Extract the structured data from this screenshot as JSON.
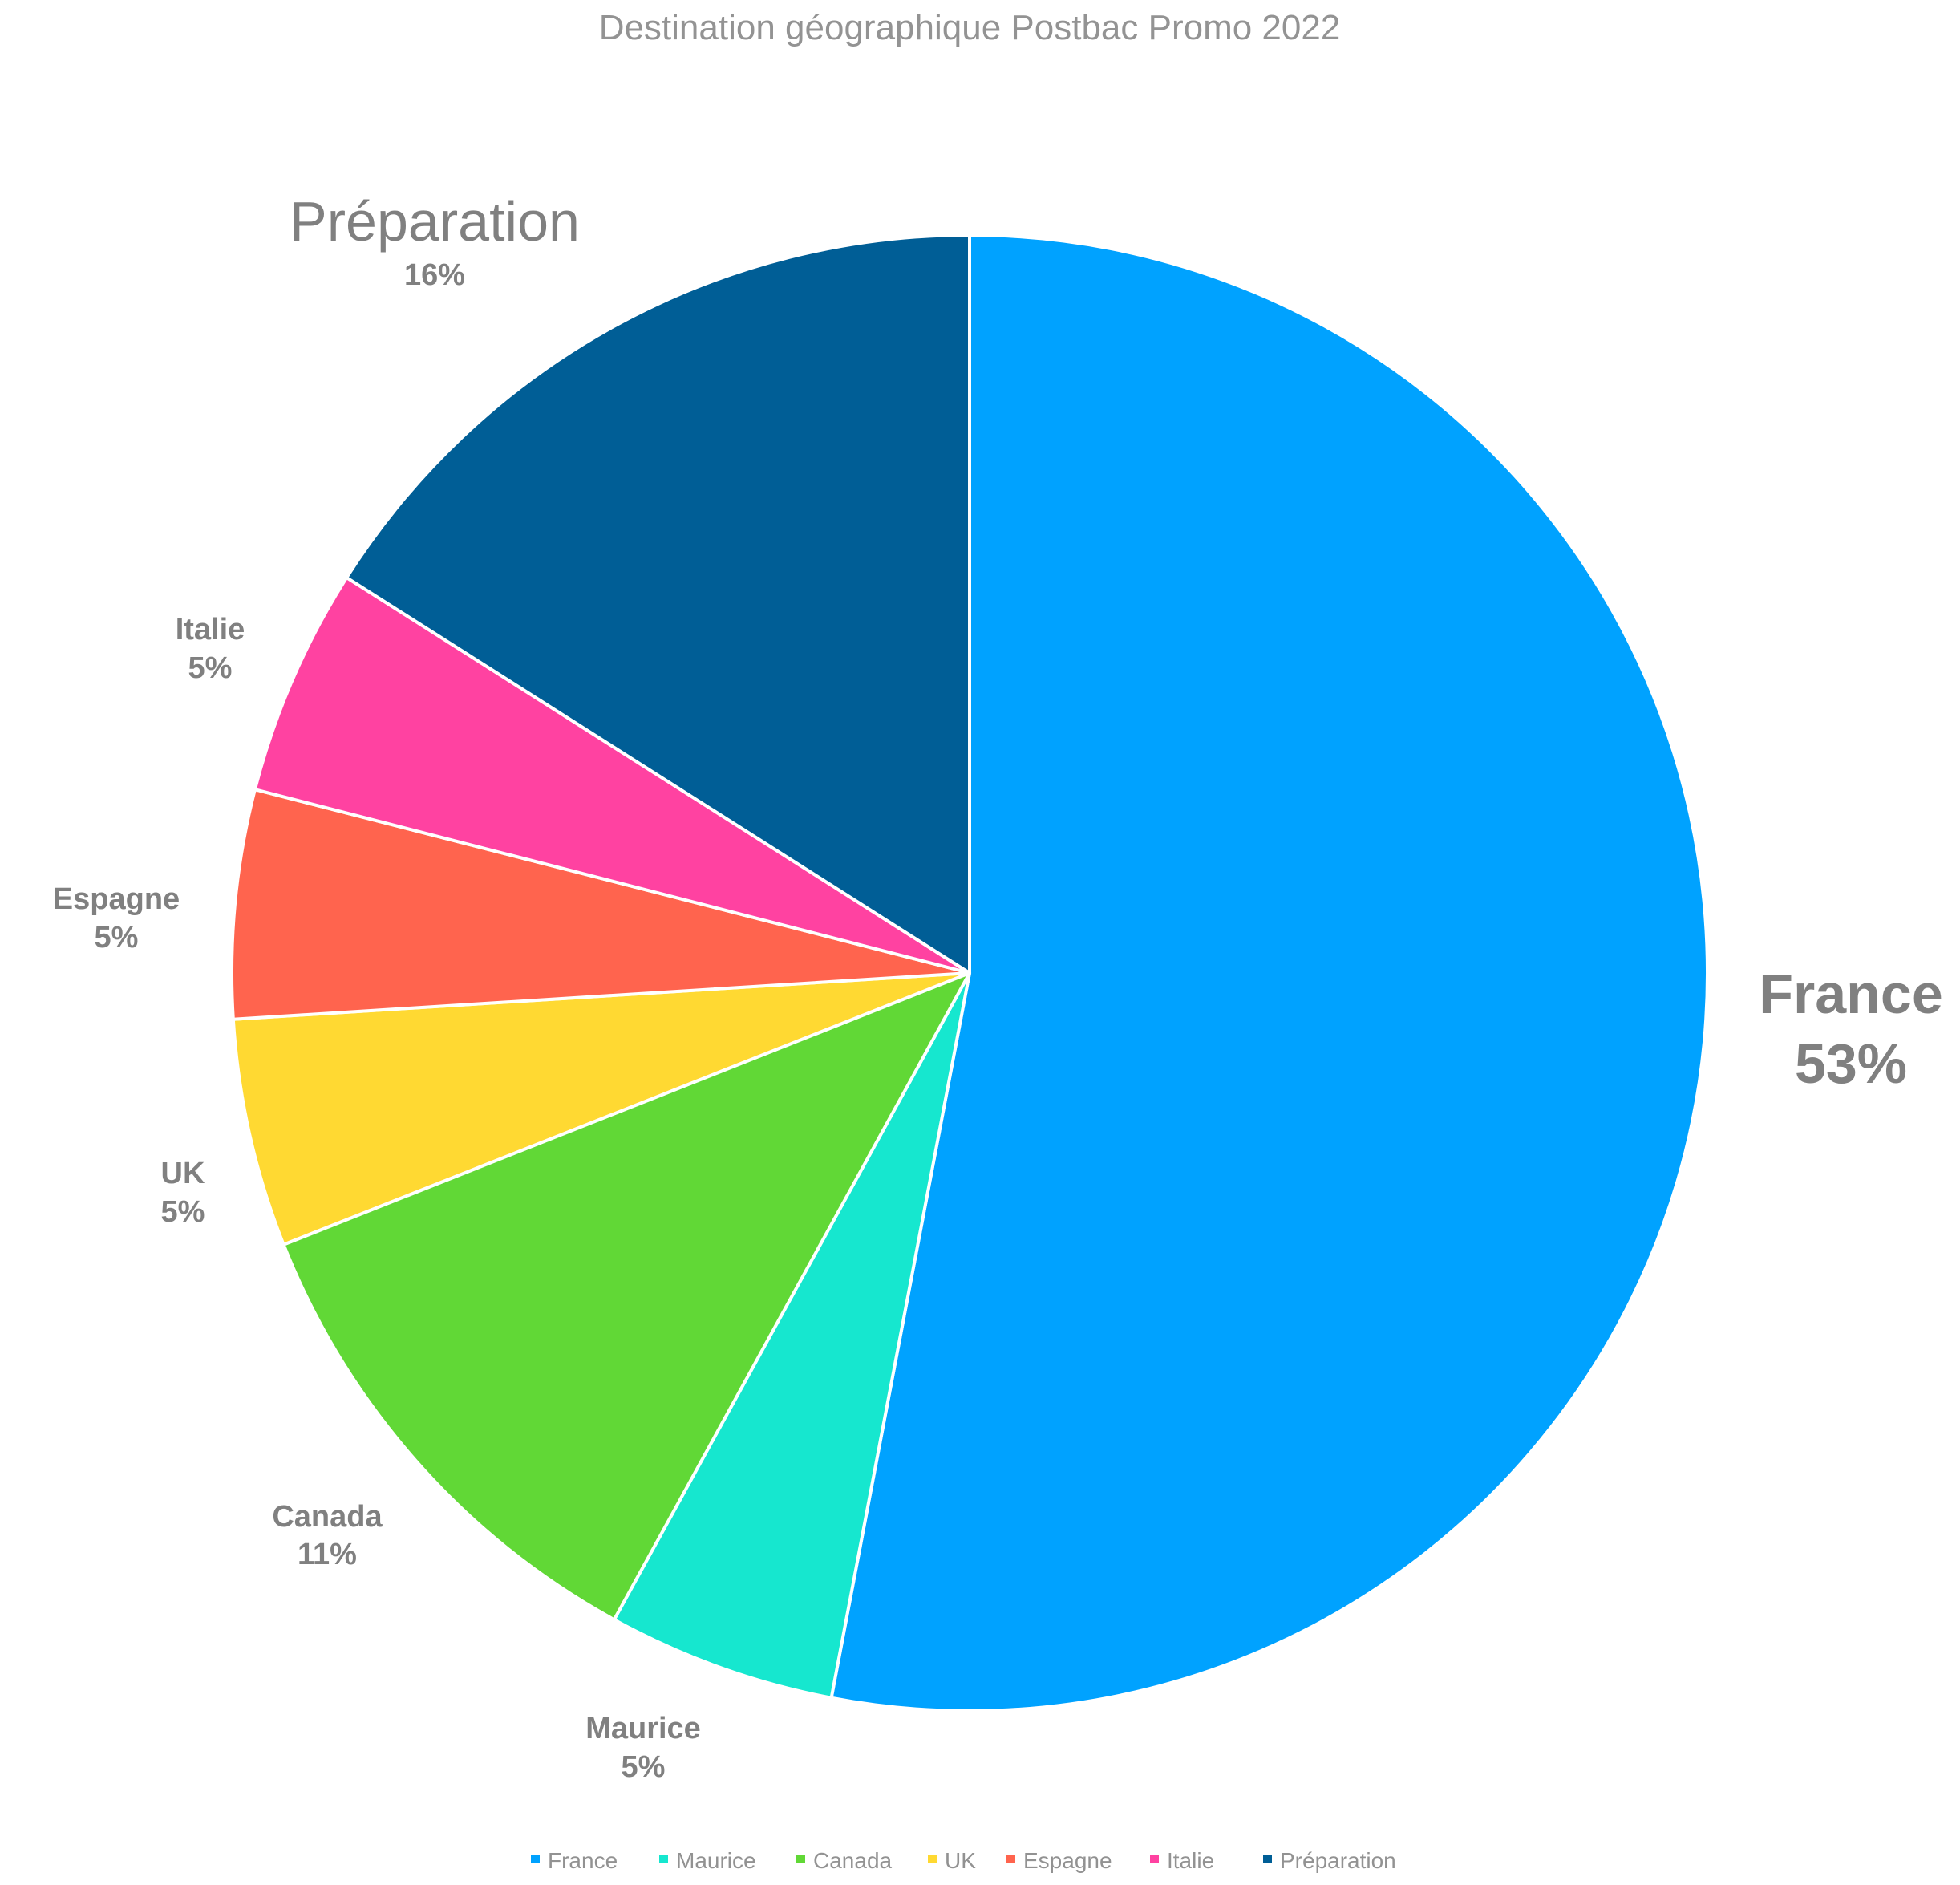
{
  "chart_data": {
    "type": "pie",
    "title": "Destination géographique Postbac Promo 2022",
    "categories": [
      "France",
      "Maurice",
      "Canada",
      "UK",
      "Espagne",
      "Italie",
      "Préparation"
    ],
    "values": [
      53,
      5,
      11,
      5,
      5,
      5,
      16
    ],
    "value_labels": [
      "53%",
      "5%",
      "11%",
      "5%",
      "5%",
      "5%",
      "16%"
    ],
    "colors": [
      "#00A2FF",
      "#16E7CF",
      "#61D836",
      "#FFD932",
      "#FF644E",
      "#FF42A1",
      "#005E96"
    ],
    "start_angle": "top",
    "direction": "clockwise",
    "legend_position": "bottom",
    "text_color": "#808080",
    "slice_border_color": "#FFFFFF"
  }
}
